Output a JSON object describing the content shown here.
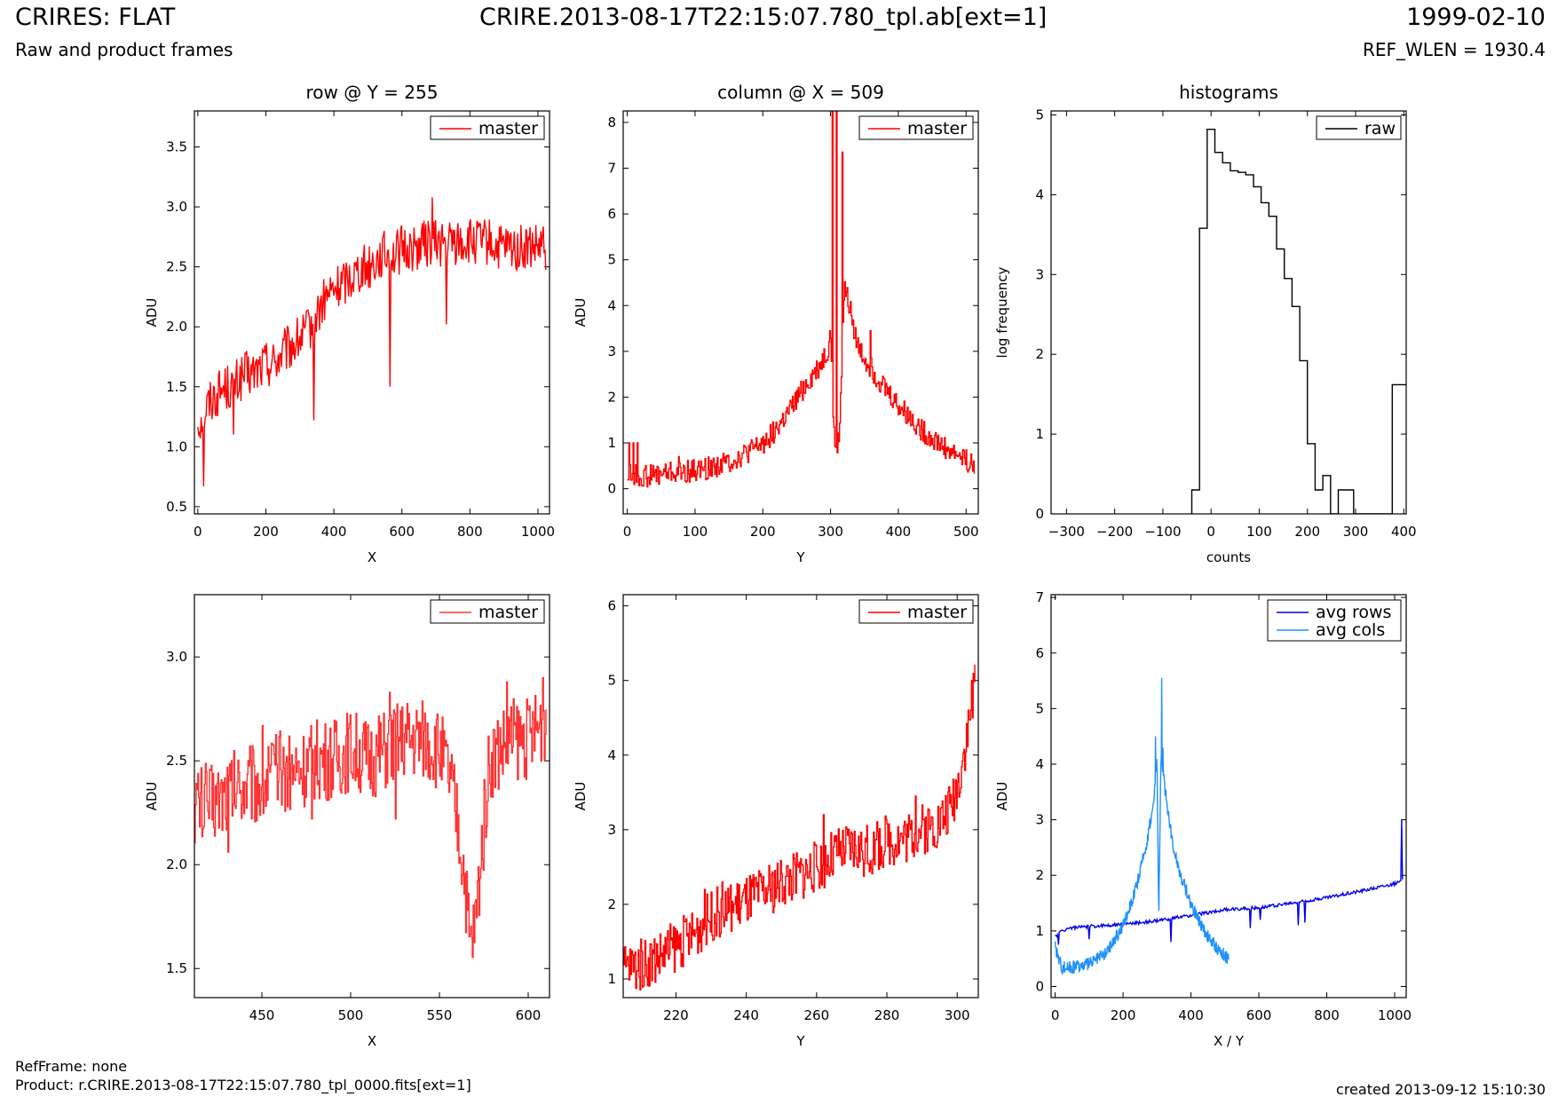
{
  "header": {
    "title": "CRIRES: FLAT",
    "subtitle": "Raw and product frames",
    "file": "CRIRE.2013-08-17T22:15:07.780_tpl.ab[ext=1]",
    "date": "1999-02-10",
    "ref_wlen": "REF_WLEN = 1930.4"
  },
  "footer": {
    "ref_frame": "RefFrame: none",
    "product": "Product: r.CRIRE.2013-08-17T22:15:07.780_tpl_0000.fits[ext=1]",
    "created": "created 2013-09-12 15:10:30"
  },
  "colors": {
    "master": "#ff0000",
    "master_zoom": "#ff3333",
    "raw": "#000000",
    "avg_rows": "#0000ee",
    "avg_cols": "#1e90ff"
  },
  "chart_data": [
    {
      "type": "line",
      "title": "row @ Y = 255",
      "xlabel": "X",
      "ylabel": "ADU",
      "xlim": [
        -10,
        1034
      ],
      "ylim": [
        0.44,
        3.8
      ],
      "xticks": [
        0,
        200,
        400,
        600,
        800,
        1000
      ],
      "yticks": [
        0.5,
        1.0,
        1.5,
        2.0,
        2.5,
        3.0,
        3.5
      ],
      "ytick_format": 1,
      "legend": "top-right",
      "step": false,
      "series": [
        {
          "name": "master",
          "color": "#ff0000",
          "x": [
            0,
            20,
            40,
            60,
            80,
            100,
            120,
            140,
            160,
            180,
            200,
            220,
            240,
            260,
            280,
            300,
            320,
            340,
            360,
            380,
            400,
            420,
            440,
            460,
            480,
            500,
            520,
            540,
            560,
            580,
            600,
            620,
            640,
            660,
            680,
            700,
            720,
            740,
            760,
            780,
            800,
            820,
            840,
            860,
            880,
            900,
            920,
            940,
            960,
            980,
            1000,
            1023
          ],
          "y": [
            1.2,
            1.3,
            1.4,
            1.45,
            1.5,
            1.5,
            1.55,
            1.6,
            1.6,
            1.65,
            1.7,
            1.7,
            1.75,
            1.8,
            1.85,
            1.9,
            1.95,
            2.05,
            2.15,
            2.25,
            2.3,
            2.35,
            2.4,
            2.45,
            2.5,
            2.5,
            2.55,
            2.6,
            2.6,
            2.6,
            2.65,
            2.65,
            2.65,
            2.7,
            2.7,
            2.7,
            2.7,
            2.7,
            2.7,
            2.7,
            2.7,
            2.7,
            2.7,
            2.7,
            2.65,
            2.65,
            2.65,
            2.65,
            2.65,
            2.65,
            2.65,
            2.65
          ],
          "noise": 0.2,
          "spikes": [
            [
              18,
              0.67
            ],
            [
              105,
              1.1
            ],
            [
              340,
              1.22
            ],
            [
              565,
              1.5
            ],
            [
              690,
              3.08
            ],
            [
              730,
              2.02
            ]
          ]
        }
      ]
    },
    {
      "type": "line",
      "title": "column @ X = 509",
      "xlabel": "Y",
      "ylabel": "ADU",
      "xlim": [
        -6,
        518
      ],
      "ylim": [
        -0.55,
        8.25
      ],
      "xticks": [
        0,
        100,
        200,
        300,
        400,
        500
      ],
      "yticks": [
        0,
        1,
        2,
        3,
        4,
        5,
        6,
        7,
        8
      ],
      "ytick_format": 0,
      "legend": "top-right",
      "step": true,
      "series": [
        {
          "name": "master",
          "color": "#ff0000",
          "x": [
            0,
            10,
            20,
            40,
            60,
            80,
            100,
            120,
            140,
            160,
            180,
            200,
            220,
            240,
            260,
            280,
            295,
            300,
            305,
            312,
            320,
            330,
            340,
            360,
            380,
            400,
            420,
            440,
            460,
            480,
            500,
            512
          ],
          "y": [
            0.3,
            0.3,
            0.25,
            0.3,
            0.35,
            0.35,
            0.4,
            0.45,
            0.55,
            0.65,
            0.8,
            1.0,
            1.3,
            1.7,
            2.2,
            2.6,
            3.0,
            3.4,
            1.0,
            1.0,
            4.4,
            3.8,
            3.1,
            2.6,
            2.2,
            1.8,
            1.5,
            1.2,
            1.0,
            0.8,
            0.65,
            0.45
          ],
          "noise": 0.25,
          "spikes": [
            [
              3,
              1.0
            ],
            [
              8,
              1.0
            ],
            [
              15,
              1.0
            ],
            [
              302,
              8.25
            ],
            [
              308,
              8.25
            ],
            [
              317,
              7.35
            ],
            [
              75,
              0.7
            ],
            [
              358,
              3.45
            ],
            [
              470,
              0.9
            ]
          ]
        }
      ]
    },
    {
      "type": "line",
      "title": "histograms",
      "xlabel": "counts",
      "ylabel": "log frequency",
      "xlim": [
        -332,
        405
      ],
      "ylim": [
        0,
        5.05
      ],
      "xticks": [
        -300,
        -200,
        -100,
        0,
        100,
        200,
        300,
        400
      ],
      "yticks": [
        0,
        1,
        2,
        3,
        4,
        5
      ],
      "ytick_format": 0,
      "legend": "top-right",
      "step": false,
      "series": [
        {
          "name": "raw",
          "color": "#000000",
          "x": [
            -40,
            -40,
            -24,
            -24,
            -8,
            -8,
            8,
            8,
            24,
            24,
            40,
            40,
            56,
            56,
            72,
            72,
            88,
            88,
            104,
            104,
            120,
            120,
            136,
            136,
            152,
            152,
            168,
            168,
            184,
            184,
            200,
            200,
            216,
            216,
            232,
            232,
            248,
            248,
            264,
            264,
            280,
            280,
            296,
            296,
            312,
            312,
            344,
            344,
            376,
            376,
            392,
            392,
            405
          ],
          "y": [
            0,
            0.3,
            0.3,
            3.58,
            3.58,
            4.82,
            4.82,
            4.53,
            4.53,
            4.4,
            4.4,
            4.3,
            4.3,
            4.28,
            4.28,
            4.25,
            4.25,
            4.1,
            4.1,
            3.9,
            3.9,
            3.73,
            3.73,
            3.32,
            3.32,
            2.95,
            2.95,
            2.6,
            2.6,
            1.92,
            1.92,
            0.88,
            0.88,
            0.3,
            0.3,
            0.48,
            0.48,
            0,
            0,
            0.3,
            0.3,
            0.3,
            0.3,
            0,
            0,
            0,
            0,
            0,
            0,
            1.62,
            1.62,
            1.62,
            1.62
          ]
        }
      ]
    },
    {
      "type": "line",
      "title": "",
      "xlabel": "X",
      "ylabel": "ADU",
      "xlim": [
        412,
        612
      ],
      "ylim": [
        1.36,
        3.3
      ],
      "xticks": [
        450,
        500,
        550,
        600
      ],
      "yticks": [
        1.5,
        2.0,
        2.5,
        3.0
      ],
      "ytick_format": 1,
      "legend": "top-right",
      "step": true,
      "series": [
        {
          "name": "master",
          "color": "#ff3333",
          "x": [
            412,
            420,
            430,
            440,
            450,
            460,
            470,
            480,
            490,
            500,
            510,
            520,
            530,
            540,
            550,
            556,
            560,
            564,
            567,
            570,
            574,
            578,
            584,
            590,
            600,
            610
          ],
          "y": [
            2.3,
            2.3,
            2.35,
            2.4,
            2.4,
            2.45,
            2.45,
            2.5,
            2.5,
            2.55,
            2.5,
            2.55,
            2.6,
            2.6,
            2.55,
            2.4,
            2.2,
            1.95,
            1.6,
            1.7,
            2.1,
            2.5,
            2.55,
            2.6,
            2.6,
            2.7
          ],
          "noise": 0.2,
          "spikes": [
            [
              431,
              2.06
            ],
            [
              450,
              2.67
            ],
            [
              478,
              2.22
            ],
            [
              522,
              2.83
            ],
            [
              525,
              2.22
            ],
            [
              588,
              2.88
            ],
            [
              608,
              2.9
            ]
          ]
        }
      ]
    },
    {
      "type": "line",
      "title": "",
      "xlabel": "Y",
      "ylabel": "ADU",
      "xlim": [
        205,
        306
      ],
      "ylim": [
        0.75,
        6.15
      ],
      "xticks": [
        220,
        240,
        260,
        280,
        300
      ],
      "yticks": [
        1,
        2,
        3,
        4,
        5,
        6
      ],
      "ytick_format": 0,
      "legend": "top-right",
      "step": true,
      "series": [
        {
          "name": "master",
          "color": "#ff0000",
          "x": [
            205,
            210,
            215,
            220,
            225,
            230,
            235,
            240,
            245,
            250,
            255,
            260,
            265,
            270,
            275,
            280,
            285,
            290,
            295,
            298,
            300,
            302,
            304,
            305
          ],
          "y": [
            1.15,
            1.2,
            1.3,
            1.45,
            1.6,
            1.85,
            1.95,
            2.05,
            2.15,
            2.3,
            2.4,
            2.5,
            2.65,
            2.75,
            2.7,
            2.85,
            2.9,
            3.0,
            3.1,
            3.3,
            3.6,
            4.1,
            4.6,
            5.0
          ],
          "noise": 0.35,
          "spikes": [
            [
              228,
              2.2
            ],
            [
              233,
              2.3
            ],
            [
              262,
              3.2
            ],
            [
              288,
              3.45
            ],
            [
              304,
              5.0
            ]
          ]
        }
      ]
    },
    {
      "type": "line",
      "title": "",
      "xlabel": "X / Y",
      "ylabel": "ADU",
      "xlim": [
        -12,
        1034
      ],
      "ylim": [
        -0.2,
        7.05
      ],
      "xticks": [
        0,
        200,
        400,
        600,
        800,
        1000
      ],
      "yticks": [
        0,
        1,
        2,
        3,
        4,
        5,
        6,
        7
      ],
      "ytick_format": 0,
      "legend": "top-right",
      "step": false,
      "series": [
        {
          "name": "avg rows",
          "color": "#0000ee",
          "x": [
            0,
            20,
            40,
            100,
            200,
            300,
            400,
            500,
            600,
            700,
            800,
            900,
            1000,
            1023
          ],
          "y": [
            0.9,
            1.0,
            1.05,
            1.08,
            1.12,
            1.18,
            1.28,
            1.38,
            1.42,
            1.5,
            1.6,
            1.72,
            1.85,
            1.9
          ],
          "noise": 0.03,
          "spikes": [
            [
              10,
              0.75
            ],
            [
              100,
              0.85
            ],
            [
              340,
              0.8
            ],
            [
              575,
              1.05
            ],
            [
              605,
              1.2
            ],
            [
              715,
              1.1
            ],
            [
              735,
              1.15
            ],
            [
              1020,
              3.0
            ]
          ]
        },
        {
          "name": "avg cols",
          "color": "#1e90ff",
          "x": [
            0,
            20,
            60,
            100,
            150,
            200,
            240,
            270,
            290,
            300,
            305,
            312,
            325,
            345,
            370,
            400,
            430,
            460,
            490,
            511
          ],
          "y": [
            0.7,
            0.35,
            0.35,
            0.4,
            0.6,
            1.1,
            1.8,
            2.6,
            3.3,
            4.1,
            1.2,
            4.2,
            3.5,
            2.6,
            2.0,
            1.5,
            1.1,
            0.8,
            0.6,
            0.5
          ],
          "noise": 0.12,
          "spikes": [
            [
              296,
              4.5
            ],
            [
              314,
              5.55
            ],
            [
              318,
              4.3
            ]
          ]
        }
      ]
    }
  ]
}
